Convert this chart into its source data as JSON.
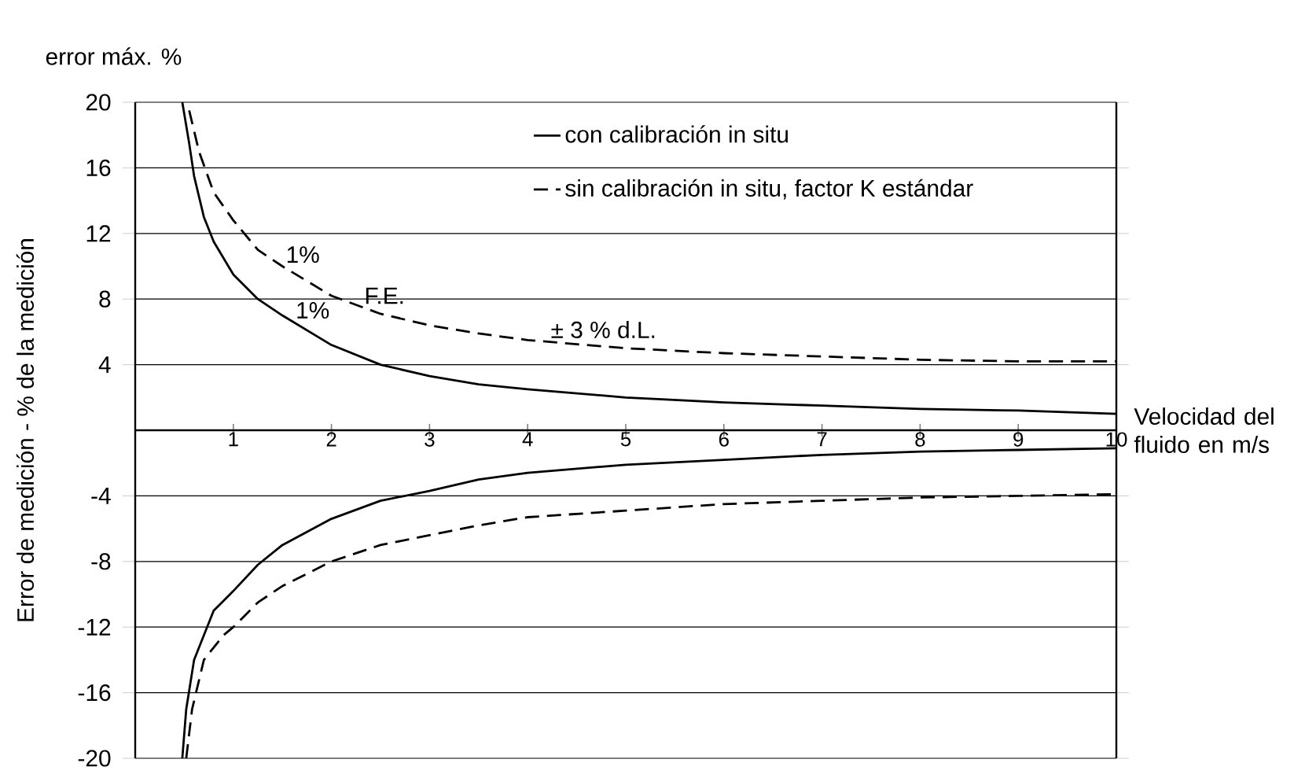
{
  "chart_data": {
    "type": "line",
    "title": "error máx. %",
    "xlabel": "Velocidad del fluido en m/s",
    "ylabel": "Error de medición - % de la medición",
    "xlim": [
      0,
      10
    ],
    "xticks": [
      1,
      2,
      3,
      4,
      5,
      6,
      7,
      8,
      9,
      10
    ],
    "ylim": [
      -20,
      20
    ],
    "yticks": [
      -20,
      -16,
      -12,
      -8,
      -4,
      4,
      8,
      12,
      16,
      20
    ],
    "grid": "y",
    "legend": "top right",
    "marker": "none",
    "series": [
      {
        "name": "con calibración in situ",
        "color": "#000000",
        "line_style": "solid",
        "x": [
          0.48,
          0.55,
          0.6,
          0.7,
          0.8,
          1,
          1.25,
          1.5,
          2,
          2.5,
          3,
          3.5,
          4,
          5,
          6,
          7,
          8,
          9,
          10
        ],
        "values": [
          20,
          17.5,
          15.5,
          13,
          11.5,
          9.5,
          8,
          7,
          5.2,
          4.0,
          3.3,
          2.8,
          2.5,
          2.0,
          1.7,
          1.5,
          1.3,
          1.2,
          1.0
        ]
      },
      {
        "name": "sin calibración in situ, factor K estándar",
        "color": "#000000",
        "line_style": "dashed",
        "x": [
          0.55,
          0.65,
          0.8,
          1,
          1.25,
          1.5,
          2,
          2.5,
          3,
          3.5,
          4,
          5,
          6,
          7,
          8,
          9,
          10
        ],
        "values": [
          19.5,
          17,
          14.5,
          12.8,
          11,
          10,
          8.2,
          7.1,
          6.4,
          5.9,
          5.5,
          5.0,
          4.7,
          4.5,
          4.3,
          4.2,
          4.2
        ]
      },
      {
        "color": "#000000",
        "line_style": "solid",
        "x": [
          0.48,
          0.52,
          0.6,
          0.8,
          1,
          1.25,
          1.5,
          2,
          2.5,
          3,
          3.5,
          4,
          5,
          6,
          7,
          8,
          9,
          10
        ],
        "values": [
          -20,
          -17,
          -14,
          -11,
          -9.8,
          -8.2,
          -7,
          -5.4,
          -4.3,
          -3.7,
          -3.0,
          -2.6,
          -2.1,
          -1.8,
          -1.5,
          -1.3,
          -1.2,
          -1.1
        ]
      },
      {
        "color": "#000000",
        "line_style": "dashed",
        "x": [
          0.52,
          0.58,
          0.7,
          0.9,
          1,
          1.25,
          1.5,
          2,
          2.5,
          3,
          3.5,
          4,
          5,
          6,
          7,
          8,
          9,
          10
        ],
        "values": [
          -20,
          -17,
          -14,
          -12.5,
          -12,
          -10.5,
          -9.5,
          -8.0,
          -7.0,
          -6.4,
          -5.8,
          -5.3,
          -4.9,
          -4.5,
          -4.3,
          -4.1,
          -4.0,
          -3.9
        ]
      }
    ],
    "annotations": [
      {
        "text": "1%",
        "x": 1.5,
        "y": 10.0
      },
      {
        "text": "F.E.",
        "x": 2.3,
        "y": 7.5
      },
      {
        "text": "1%",
        "x": 1.6,
        "y": 6.6
      },
      {
        "text": "± 3 % d.L.",
        "x": 4.2,
        "y": 5.4
      }
    ]
  }
}
